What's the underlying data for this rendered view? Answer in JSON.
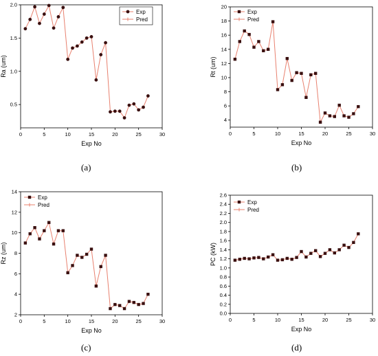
{
  "colors": {
    "line": "#e8806e",
    "marker": "#3a1010",
    "axis": "#000000"
  },
  "chart_data": [
    {
      "type": "line",
      "panel_label": "(a)",
      "xlabel": "Exp No",
      "ylabel": "Ra (um)",
      "xlim": [
        0,
        30
      ],
      "ylim": [
        0.15,
        2.0
      ],
      "x_ticks": [
        0,
        5,
        10,
        15,
        20,
        25,
        30
      ],
      "y_ticks": [
        0.5,
        1.0,
        1.5,
        2.0
      ],
      "y_tick_labels": [
        "0.5",
        "1.0",
        "1.5",
        "2.0"
      ],
      "legend_placement": "top-right",
      "marker": "circle",
      "x": [
        1,
        2,
        3,
        4,
        5,
        6,
        7,
        8,
        9,
        10,
        11,
        12,
        13,
        14,
        15,
        16,
        17,
        18,
        19,
        20,
        21,
        22,
        23,
        24,
        25,
        26,
        27
      ],
      "series": [
        {
          "name": "Exp",
          "values": [
            1.64,
            1.78,
            1.97,
            1.72,
            1.86,
            1.99,
            1.65,
            1.82,
            1.96,
            1.18,
            1.35,
            1.38,
            1.44,
            1.5,
            1.52,
            0.87,
            1.25,
            1.43,
            0.39,
            0.4,
            0.4,
            0.3,
            0.49,
            0.51,
            0.42,
            0.46,
            0.63
          ]
        },
        {
          "name": "Pred",
          "values": [
            1.64,
            1.78,
            1.97,
            1.72,
            1.86,
            1.99,
            1.65,
            1.82,
            1.96,
            1.18,
            1.35,
            1.38,
            1.44,
            1.5,
            1.52,
            0.87,
            1.25,
            1.43,
            0.39,
            0.4,
            0.4,
            0.3,
            0.49,
            0.51,
            0.42,
            0.46,
            0.63
          ]
        }
      ]
    },
    {
      "type": "line",
      "panel_label": "(b)",
      "xlabel": "Exp No",
      "ylabel": "Rt (um)",
      "xlim": [
        0,
        30
      ],
      "ylim": [
        3,
        20
      ],
      "x_ticks": [
        0,
        5,
        10,
        15,
        20,
        25,
        30
      ],
      "y_ticks": [
        4,
        6,
        8,
        10,
        12,
        14,
        16,
        18,
        20
      ],
      "y_tick_labels": [
        "4",
        "6",
        "8",
        "10",
        "12",
        "14",
        "16",
        "18",
        "20"
      ],
      "legend_placement": "top-left",
      "marker": "square",
      "x": [
        1,
        2,
        3,
        4,
        5,
        6,
        7,
        8,
        9,
        10,
        11,
        12,
        13,
        14,
        15,
        16,
        17,
        18,
        19,
        20,
        21,
        22,
        23,
        24,
        25,
        26,
        27
      ],
      "series": [
        {
          "name": "Exp",
          "values": [
            12.6,
            15.1,
            16.6,
            16.1,
            14.3,
            15.1,
            13.8,
            14.0,
            17.9,
            8.3,
            9.0,
            12.7,
            9.6,
            10.7,
            10.6,
            7.2,
            10.4,
            10.6,
            3.7,
            5.0,
            4.6,
            4.5,
            6.1,
            4.6,
            4.4,
            4.9,
            5.9
          ]
        },
        {
          "name": "Pred",
          "values": [
            12.6,
            15.1,
            16.6,
            16.1,
            14.3,
            15.1,
            13.8,
            14.0,
            17.9,
            8.3,
            9.0,
            12.7,
            9.6,
            10.7,
            10.6,
            7.2,
            10.4,
            10.6,
            3.7,
            5.0,
            4.6,
            4.5,
            6.1,
            4.6,
            4.4,
            4.9,
            5.9
          ]
        }
      ]
    },
    {
      "type": "line",
      "panel_label": "(c)",
      "xlabel": "Exp No",
      "ylabel": "Rz (um)",
      "xlim": [
        0,
        30
      ],
      "ylim": [
        2,
        14
      ],
      "x_ticks": [
        0,
        5,
        10,
        15,
        20,
        25,
        30
      ],
      "y_ticks": [
        2,
        4,
        6,
        8,
        10,
        12,
        14
      ],
      "y_tick_labels": [
        "2",
        "4",
        "6",
        "8",
        "10",
        "12",
        "14"
      ],
      "legend_placement": "top-left",
      "marker": "square",
      "x": [
        1,
        2,
        3,
        4,
        5,
        6,
        7,
        8,
        9,
        10,
        11,
        12,
        13,
        14,
        15,
        16,
        17,
        18,
        19,
        20,
        21,
        22,
        23,
        24,
        25,
        26,
        27
      ],
      "series": [
        {
          "name": "Exp",
          "values": [
            9.0,
            9.9,
            10.5,
            9.4,
            10.2,
            11.0,
            8.9,
            10.2,
            10.2,
            6.1,
            6.8,
            7.8,
            7.6,
            7.9,
            8.4,
            4.8,
            6.7,
            7.8,
            2.6,
            3.0,
            2.9,
            2.6,
            3.3,
            3.2,
            3.0,
            3.1,
            4.0
          ]
        },
        {
          "name": "Pred",
          "values": [
            9.0,
            9.9,
            10.5,
            9.4,
            10.2,
            11.0,
            8.9,
            10.2,
            10.2,
            6.1,
            6.8,
            7.8,
            7.6,
            7.9,
            8.4,
            4.8,
            6.7,
            7.8,
            2.6,
            3.0,
            2.9,
            2.6,
            3.3,
            3.2,
            3.0,
            3.1,
            4.0
          ]
        }
      ]
    },
    {
      "type": "line",
      "panel_label": "(d)",
      "xlabel": "Exp No",
      "ylabel": "PC (kW)",
      "xlim": [
        0,
        30
      ],
      "ylim": [
        0,
        2.6
      ],
      "x_ticks": [
        0,
        5,
        10,
        15,
        20,
        25,
        30
      ],
      "y_ticks": [
        0.0,
        0.2,
        0.4,
        0.6,
        0.8,
        1.0,
        1.2,
        1.4,
        1.6,
        1.8,
        2.0,
        2.2,
        2.4,
        2.6
      ],
      "y_tick_labels": [
        "0.0",
        "0.2",
        "0.4",
        "0.6",
        "0.8",
        "1.0",
        "1.2",
        "1.4",
        "1.6",
        "1.8",
        "2.0",
        "2.2",
        "2.4",
        "2.6"
      ],
      "legend_placement": "top-left",
      "marker": "square",
      "x": [
        1,
        2,
        3,
        4,
        5,
        6,
        7,
        8,
        9,
        10,
        11,
        12,
        13,
        14,
        15,
        16,
        17,
        18,
        19,
        20,
        21,
        22,
        23,
        24,
        25,
        26,
        27
      ],
      "series": [
        {
          "name": "Exp",
          "values": [
            1.17,
            1.19,
            1.21,
            1.2,
            1.22,
            1.23,
            1.2,
            1.24,
            1.29,
            1.17,
            1.18,
            1.21,
            1.19,
            1.23,
            1.36,
            1.24,
            1.32,
            1.38,
            1.25,
            1.32,
            1.4,
            1.33,
            1.4,
            1.5,
            1.45,
            1.56,
            1.75
          ]
        },
        {
          "name": "Pred",
          "values": [
            1.17,
            1.19,
            1.21,
            1.2,
            1.22,
            1.23,
            1.2,
            1.24,
            1.29,
            1.17,
            1.18,
            1.21,
            1.19,
            1.23,
            1.36,
            1.24,
            1.32,
            1.38,
            1.25,
            1.32,
            1.4,
            1.33,
            1.4,
            1.5,
            1.45,
            1.56,
            1.75
          ]
        }
      ]
    }
  ]
}
